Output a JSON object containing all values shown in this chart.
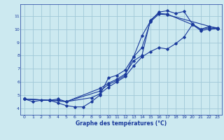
{
  "title": "Graphe des températures (°C)",
  "bg_color": "#cce9f0",
  "grid_color": "#a0c8d8",
  "line_color": "#1a3a9c",
  "xlim": [
    -0.5,
    23.5
  ],
  "ylim": [
    3.5,
    11.9
  ],
  "xticks": [
    0,
    1,
    2,
    3,
    4,
    5,
    6,
    7,
    8,
    9,
    10,
    11,
    12,
    13,
    14,
    15,
    16,
    17,
    18,
    19,
    20,
    21,
    22,
    23
  ],
  "yticks": [
    4,
    5,
    6,
    7,
    8,
    9,
    10,
    11
  ],
  "curve1_x": [
    0,
    1,
    2,
    3,
    4,
    5,
    6,
    7,
    8,
    9,
    10,
    11,
    12,
    13,
    14,
    15,
    16,
    17,
    18,
    19,
    20,
    21,
    22,
    23
  ],
  "curve1_y": [
    4.7,
    4.5,
    4.6,
    4.6,
    4.4,
    4.2,
    4.1,
    4.1,
    4.5,
    5.0,
    6.3,
    6.5,
    6.9,
    7.9,
    9.5,
    10.6,
    11.3,
    11.4,
    11.2,
    11.35,
    10.4,
    10.0,
    10.2,
    10.1
  ],
  "curve2_x": [
    0,
    3,
    4,
    5,
    9,
    10,
    11,
    12,
    13,
    14,
    15,
    16,
    17,
    20,
    21,
    22,
    23
  ],
  "curve2_y": [
    4.7,
    4.6,
    4.7,
    4.5,
    5.5,
    5.9,
    6.2,
    6.6,
    7.6,
    8.0,
    10.7,
    11.2,
    11.15,
    10.35,
    10.0,
    10.1,
    10.05
  ],
  "curve3_x": [
    0,
    3,
    4,
    5,
    9,
    10,
    11,
    12,
    13,
    14,
    15,
    16,
    17,
    23
  ],
  "curve3_y": [
    4.7,
    4.6,
    4.6,
    4.5,
    5.3,
    5.8,
    6.1,
    6.5,
    7.9,
    8.6,
    10.55,
    11.15,
    11.1,
    10.05
  ],
  "curve4_x": [
    0,
    3,
    5,
    8,
    9,
    10,
    11,
    12,
    13,
    14,
    15,
    16,
    17,
    18,
    19,
    20,
    21,
    22,
    23
  ],
  "curve4_y": [
    4.7,
    4.6,
    4.5,
    4.8,
    5.1,
    5.6,
    6.0,
    6.4,
    7.2,
    7.9,
    8.3,
    8.6,
    8.5,
    8.9,
    9.4,
    10.35,
    9.9,
    10.0,
    10.05
  ]
}
